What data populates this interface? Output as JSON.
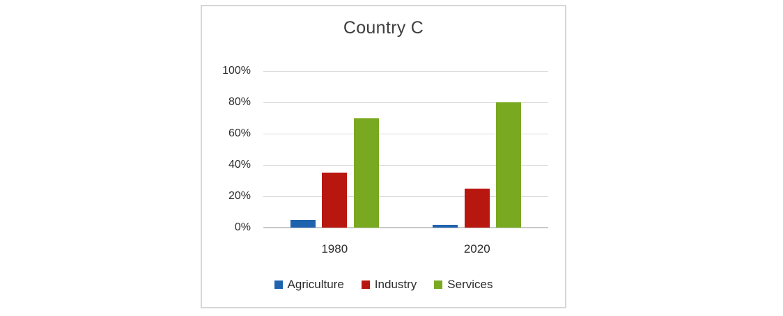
{
  "chart_data": {
    "type": "bar",
    "title": "Country C",
    "categories": [
      "1980",
      "2020"
    ],
    "series": [
      {
        "name": "Agriculture",
        "color": "#1f63ae",
        "values": [
          5,
          2
        ]
      },
      {
        "name": "Industry",
        "color": "#b8170f",
        "values": [
          35,
          25
        ]
      },
      {
        "name": "Services",
        "color": "#79a821",
        "values": [
          70,
          80
        ]
      }
    ],
    "y_ticks": [
      "100%",
      "80%",
      "60%",
      "40%",
      "20%",
      "0%"
    ],
    "ylim": [
      0,
      100
    ],
    "xlabel": "",
    "ylabel": "",
    "grid": "horizontal",
    "legend_position": "bottom",
    "legend_labels": [
      "Agriculture",
      "Industry",
      "Services"
    ]
  }
}
